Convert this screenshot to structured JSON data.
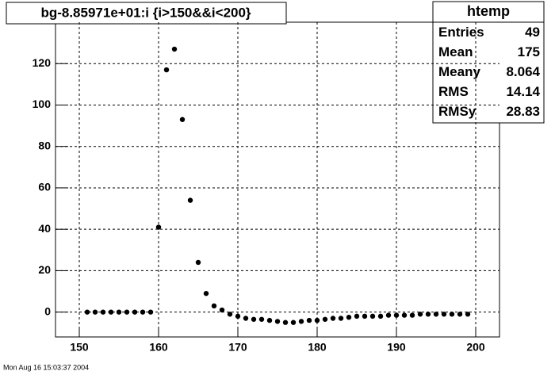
{
  "chart_data": {
    "type": "scatter",
    "title": "bg-8.85971e+01:i {i>150&&i<200}",
    "x": [
      151,
      152,
      153,
      154,
      155,
      156,
      157,
      158,
      159,
      160,
      161,
      162,
      163,
      164,
      165,
      166,
      167,
      168,
      169,
      170,
      171,
      172,
      173,
      174,
      175,
      176,
      177,
      178,
      179,
      180,
      181,
      182,
      183,
      184,
      185,
      186,
      187,
      188,
      189,
      190,
      191,
      192,
      193,
      194,
      195,
      196,
      197,
      198,
      199
    ],
    "values": [
      0,
      0,
      0,
      0,
      0,
      0,
      0,
      0,
      0,
      41,
      117,
      127,
      93,
      54,
      24,
      9,
      3,
      1,
      -1,
      -2,
      -3,
      -3.5,
      -3.5,
      -4,
      -4.5,
      -5,
      -5,
      -4.5,
      -4,
      -4,
      -3.5,
      -3,
      -3,
      -2.5,
      -2,
      -2,
      -2,
      -2,
      -1.5,
      -1.5,
      -1.5,
      -1.5,
      -1,
      -1,
      -1,
      -1,
      -1,
      -1,
      -1
    ],
    "color": "#000000",
    "xlim": [
      147,
      203
    ],
    "ylim": [
      -12,
      140
    ],
    "xticks": [
      150,
      160,
      170,
      180,
      190,
      200
    ],
    "yticks": [
      0,
      20,
      40,
      60,
      80,
      100,
      120
    ],
    "grid": true
  },
  "stats": {
    "title": "htemp",
    "rows": [
      [
        "Entries",
        "49"
      ],
      [
        "Mean",
        "175"
      ],
      [
        "Meany",
        "8.064"
      ],
      [
        "RMS",
        "14.14"
      ],
      [
        "RMSy",
        "28.83"
      ]
    ]
  },
  "footer": "Mon Aug 16 15:03:37 2004"
}
